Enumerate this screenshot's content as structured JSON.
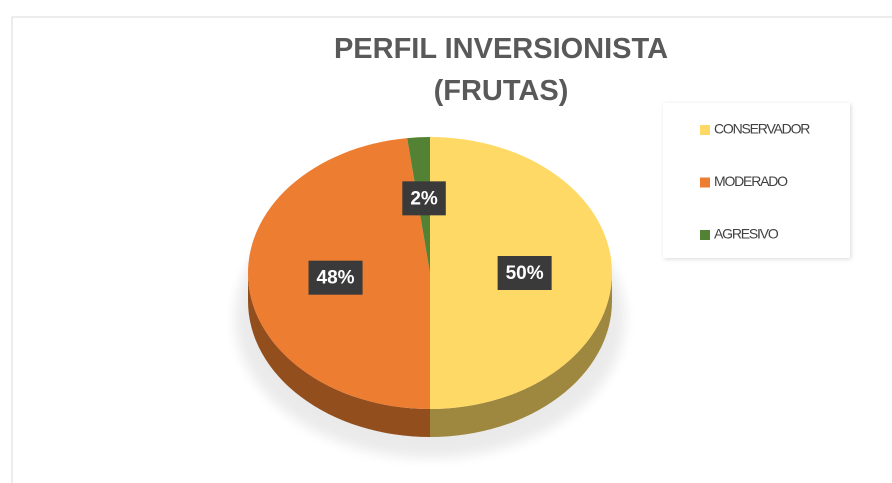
{
  "chart_data": {
    "type": "pie",
    "title": "PERFIL INVERSIONISTA (FRUTAS)",
    "categories": [
      "CONSERVADOR",
      "MODERADO",
      "AGRESIVO"
    ],
    "values": [
      50,
      48,
      2
    ],
    "value_labels": [
      "50%",
      "48%",
      "2%"
    ],
    "colors": [
      "#ffd966",
      "#ed7d31",
      "#548235"
    ],
    "legend": "right"
  }
}
